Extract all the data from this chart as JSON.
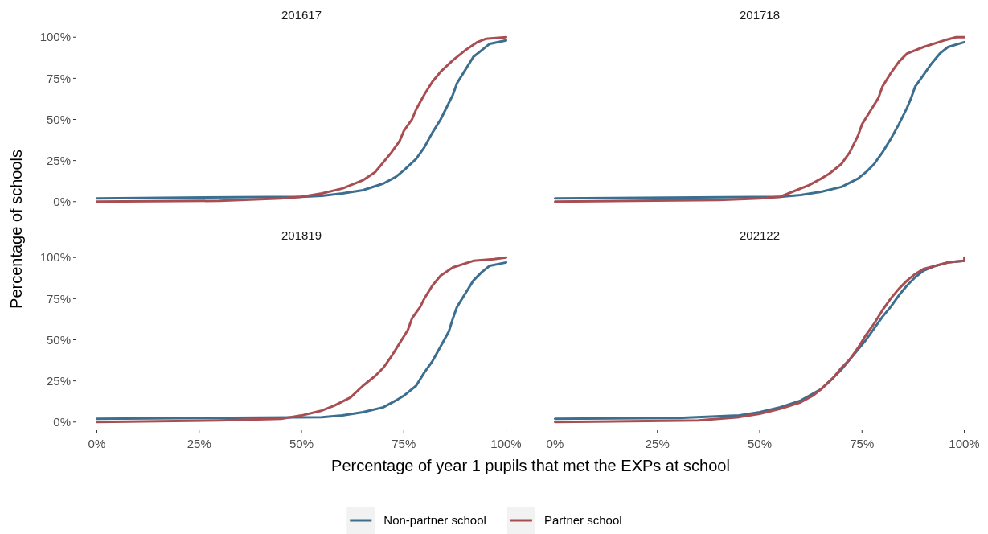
{
  "chart_data": [
    {
      "type": "line",
      "title": "201617",
      "xlabel": "Percentage of year 1 pupils that met the EXPs at school",
      "ylabel": "Percentage of schools",
      "legend": "bottom",
      "tick_labels": "y",
      "xlim": [
        0,
        100
      ],
      "ylim": [
        0,
        100
      ],
      "yticks": [
        {
          "value": 0,
          "label": "0%"
        },
        {
          "value": 25,
          "label": "25%"
        },
        {
          "value": 50,
          "label": "50%"
        },
        {
          "value": 75,
          "label": "75%"
        },
        {
          "value": 100,
          "label": "100%"
        }
      ],
      "series": [
        {
          "name": "Non-partner school",
          "color": "#3b6e8f",
          "x": [
            0,
            50,
            55,
            60,
            65,
            70,
            73,
            75,
            78,
            80,
            82,
            84,
            85,
            87,
            88,
            90,
            92,
            94,
            96,
            100
          ],
          "values": [
            2,
            3,
            3.5,
            5,
            7,
            11,
            15,
            19,
            26,
            33,
            42,
            50,
            55,
            65,
            72,
            80,
            88,
            92,
            96,
            98
          ]
        },
        {
          "name": "Partner school",
          "color": "#a84e52",
          "x": [
            0,
            30,
            45,
            50,
            55,
            60,
            65,
            68,
            70,
            72,
            74,
            75,
            77,
            78,
            80,
            82,
            84,
            87,
            90,
            93,
            95,
            100
          ],
          "values": [
            0,
            0.5,
            2,
            3,
            5,
            8,
            13,
            18,
            24,
            30,
            37,
            43,
            50,
            56,
            65,
            73,
            79,
            86,
            92,
            97,
            99,
            100
          ]
        }
      ]
    },
    {
      "type": "line",
      "title": "201718",
      "tick_labels": false,
      "xlim": [
        0,
        100
      ],
      "ylim": [
        0,
        100
      ],
      "series": [
        {
          "color": "#3b6e8f",
          "x": [
            0,
            55,
            60,
            65,
            70,
            74,
            76,
            78,
            80,
            82,
            84,
            86,
            87,
            88,
            90,
            92,
            94,
            96,
            100
          ],
          "values": [
            2,
            3,
            4,
            6,
            9,
            14,
            18,
            23,
            30,
            38,
            47,
            57,
            63,
            70,
            77,
            84,
            90,
            94,
            97
          ]
        },
        {
          "color": "#a84e52",
          "x": [
            0,
            40,
            50,
            55,
            58,
            62,
            65,
            67,
            70,
            72,
            74,
            75,
            77,
            79,
            80,
            82,
            84,
            86,
            90,
            95,
            98,
            100
          ],
          "values": [
            0,
            1,
            2,
            3,
            6,
            10,
            14,
            17,
            23,
            30,
            40,
            47,
            55,
            63,
            70,
            78,
            85,
            90,
            94,
            98,
            100,
            100
          ]
        }
      ]
    },
    {
      "type": "line",
      "title": "201819",
      "xlim": [
        0,
        100
      ],
      "ylim": [
        0,
        100
      ],
      "xticks": [
        {
          "value": 0,
          "label": "0%"
        },
        {
          "value": 25,
          "label": "25%"
        },
        {
          "value": 50,
          "label": "50%"
        },
        {
          "value": 75,
          "label": "75%"
        },
        {
          "value": 100,
          "label": "100%"
        }
      ],
      "yticks": [
        {
          "value": 0,
          "label": "0%"
        },
        {
          "value": 25,
          "label": "25%"
        },
        {
          "value": 50,
          "label": "50%"
        },
        {
          "value": 75,
          "label": "75%"
        },
        {
          "value": 100,
          "label": "100%"
        }
      ],
      "series": [
        {
          "color": "#3b6e8f",
          "x": [
            0,
            55,
            60,
            65,
            70,
            73,
            75,
            78,
            80,
            82,
            84,
            86,
            87,
            88,
            90,
            92,
            94,
            96,
            100
          ],
          "values": [
            2,
            3,
            4,
            6,
            9,
            13,
            16,
            22,
            30,
            37,
            46,
            55,
            63,
            70,
            78,
            86,
            91,
            95,
            97
          ]
        },
        {
          "color": "#a84e52",
          "x": [
            0,
            30,
            45,
            50,
            55,
            58,
            62,
            65,
            68,
            70,
            72,
            74,
            76,
            77,
            79,
            80,
            82,
            84,
            87,
            92,
            97,
            100
          ],
          "values": [
            0,
            1,
            2,
            4,
            7,
            10,
            15,
            22,
            28,
            33,
            40,
            48,
            56,
            63,
            70,
            75,
            83,
            89,
            94,
            98,
            99,
            100
          ]
        }
      ]
    },
    {
      "type": "line",
      "title": "202122",
      "tick_labels": "x",
      "xlim": [
        0,
        100
      ],
      "ylim": [
        0,
        100
      ],
      "xticks": [
        {
          "value": 0,
          "label": "0%"
        },
        {
          "value": 25,
          "label": "25%"
        },
        {
          "value": 50,
          "label": "50%"
        },
        {
          "value": 75,
          "label": "75%"
        },
        {
          "value": 100,
          "label": "100%"
        }
      ],
      "series": [
        {
          "color": "#3b6e8f",
          "x": [
            0,
            30,
            45,
            50,
            55,
            60,
            65,
            68,
            70,
            72,
            74,
            76,
            78,
            80,
            82,
            84,
            86,
            88,
            90,
            93,
            96,
            100
          ],
          "values": [
            2,
            2.5,
            4,
            6,
            9,
            13,
            20,
            27,
            32,
            38,
            44,
            50,
            57,
            64,
            70,
            77,
            83,
            88,
            92,
            95,
            97,
            98
          ]
        },
        {
          "color": "#a84e52",
          "x": [
            0,
            35,
            45,
            50,
            55,
            60,
            63,
            65,
            68,
            70,
            72,
            74,
            76,
            78,
            80,
            82,
            84,
            86,
            88,
            90,
            93,
            96,
            100,
            100
          ],
          "values": [
            0,
            1,
            3,
            5,
            8,
            12,
            16,
            20,
            27,
            33,
            38,
            45,
            53,
            60,
            68,
            75,
            81,
            86,
            90,
            93,
            95,
            97,
            98,
            100
          ]
        }
      ]
    }
  ]
}
